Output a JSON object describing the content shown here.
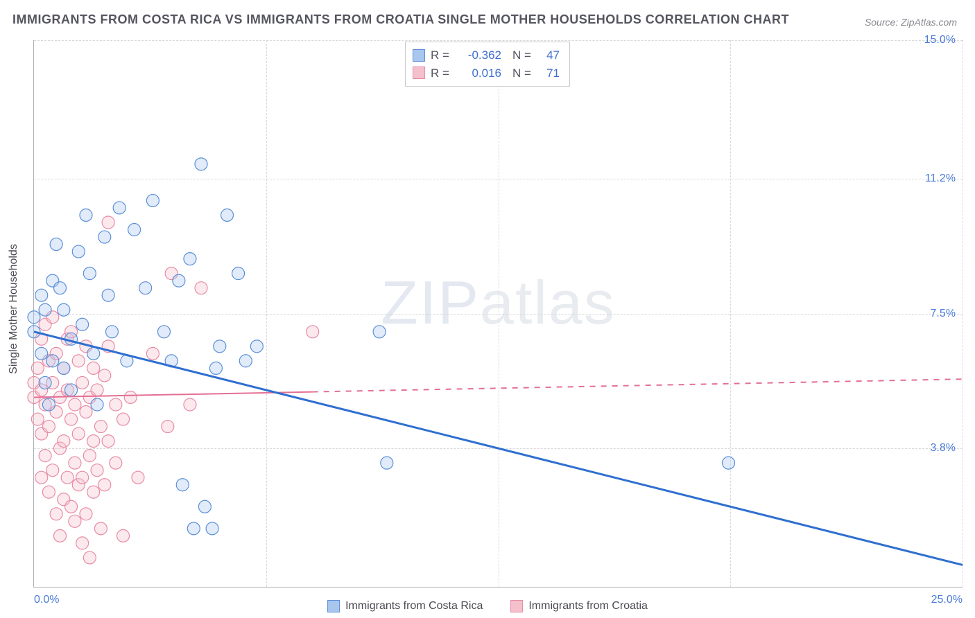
{
  "title": "IMMIGRANTS FROM COSTA RICA VS IMMIGRANTS FROM CROATIA SINGLE MOTHER HOUSEHOLDS CORRELATION CHART",
  "source": "Source: ZipAtlas.com",
  "watermark_main": "ZIP",
  "watermark_sub": "atlas",
  "ylabel": "Single Mother Households",
  "chart": {
    "type": "scatter-with-trend",
    "x_range": [
      0.0,
      25.0
    ],
    "y_range": [
      0.0,
      15.0
    ],
    "x_ticks": [
      0.0,
      25.0
    ],
    "x_tick_labels": [
      "0.0%",
      "25.0%"
    ],
    "x_grid_positions": [
      0.0,
      6.25,
      12.5,
      18.75,
      25.0
    ],
    "y_ticks": [
      3.8,
      7.5,
      11.2,
      15.0
    ],
    "y_tick_labels": [
      "3.8%",
      "7.5%",
      "11.2%",
      "15.0%"
    ],
    "background_color": "#ffffff",
    "grid_color": "#d8d8dc",
    "axis_color": "#b0b0b8",
    "marker_radius": 9,
    "marker_fill_opacity": 0.35,
    "marker_stroke_width": 1.2,
    "series": [
      {
        "name": "Immigrants from Costa Rica",
        "color_fill": "#a9c6ee",
        "color_stroke": "#5b8fd8",
        "trend_color": "#2f6fd0",
        "trend_width": 3,
        "trend_dash_after_x": null,
        "R": -0.362,
        "N": 47,
        "trend_start": {
          "x": 0.0,
          "y": 7.0
        },
        "trend_end": {
          "x": 25.0,
          "y": 0.6
        },
        "points": [
          [
            0.0,
            7.0
          ],
          [
            0.0,
            7.4
          ],
          [
            0.2,
            8.0
          ],
          [
            0.2,
            6.4
          ],
          [
            0.3,
            5.6
          ],
          [
            0.3,
            7.6
          ],
          [
            0.4,
            5.0
          ],
          [
            0.5,
            8.4
          ],
          [
            0.5,
            6.2
          ],
          [
            0.6,
            9.4
          ],
          [
            0.7,
            8.2
          ],
          [
            0.8,
            7.6
          ],
          [
            0.8,
            6.0
          ],
          [
            1.0,
            6.8
          ],
          [
            1.0,
            5.4
          ],
          [
            1.2,
            9.2
          ],
          [
            1.3,
            7.2
          ],
          [
            1.4,
            10.2
          ],
          [
            1.5,
            8.6
          ],
          [
            1.6,
            6.4
          ],
          [
            1.7,
            5.0
          ],
          [
            1.9,
            9.6
          ],
          [
            2.0,
            8.0
          ],
          [
            2.1,
            7.0
          ],
          [
            2.3,
            10.4
          ],
          [
            2.5,
            6.2
          ],
          [
            2.7,
            9.8
          ],
          [
            3.0,
            8.2
          ],
          [
            3.2,
            10.6
          ],
          [
            3.5,
            7.0
          ],
          [
            3.7,
            6.2
          ],
          [
            3.9,
            8.4
          ],
          [
            4.0,
            2.8
          ],
          [
            4.2,
            9.0
          ],
          [
            4.5,
            11.6
          ],
          [
            4.6,
            2.2
          ],
          [
            4.9,
            6.0
          ],
          [
            5.0,
            6.6
          ],
          [
            5.2,
            10.2
          ],
          [
            5.5,
            8.6
          ],
          [
            5.7,
            6.2
          ],
          [
            6.0,
            6.6
          ],
          [
            9.3,
            7.0
          ],
          [
            9.5,
            3.4
          ],
          [
            4.3,
            1.6
          ],
          [
            4.8,
            1.6
          ],
          [
            18.7,
            3.4
          ]
        ]
      },
      {
        "name": "Immigrants from Croatia",
        "color_fill": "#f4c0cc",
        "color_stroke": "#e88ba4",
        "trend_color": "#e46f94",
        "trend_width": 2,
        "trend_dash_after_x": 7.5,
        "R": 0.016,
        "N": 71,
        "trend_start": {
          "x": 0.0,
          "y": 5.2
        },
        "trend_end": {
          "x": 25.0,
          "y": 5.7
        },
        "points": [
          [
            0.0,
            5.2
          ],
          [
            0.0,
            5.6
          ],
          [
            0.1,
            4.6
          ],
          [
            0.1,
            6.0
          ],
          [
            0.2,
            3.0
          ],
          [
            0.2,
            4.2
          ],
          [
            0.2,
            5.4
          ],
          [
            0.2,
            6.8
          ],
          [
            0.3,
            7.2
          ],
          [
            0.3,
            3.6
          ],
          [
            0.3,
            5.0
          ],
          [
            0.4,
            4.4
          ],
          [
            0.4,
            2.6
          ],
          [
            0.4,
            6.2
          ],
          [
            0.5,
            5.6
          ],
          [
            0.5,
            3.2
          ],
          [
            0.5,
            7.4
          ],
          [
            0.6,
            4.8
          ],
          [
            0.6,
            2.0
          ],
          [
            0.6,
            6.4
          ],
          [
            0.7,
            5.2
          ],
          [
            0.7,
            3.8
          ],
          [
            0.7,
            1.4
          ],
          [
            0.8,
            4.0
          ],
          [
            0.8,
            6.0
          ],
          [
            0.8,
            2.4
          ],
          [
            0.9,
            5.4
          ],
          [
            0.9,
            3.0
          ],
          [
            0.9,
            6.8
          ],
          [
            1.0,
            4.6
          ],
          [
            1.0,
            2.2
          ],
          [
            1.0,
            7.0
          ],
          [
            1.1,
            5.0
          ],
          [
            1.1,
            3.4
          ],
          [
            1.1,
            1.8
          ],
          [
            1.2,
            6.2
          ],
          [
            1.2,
            4.2
          ],
          [
            1.2,
            2.8
          ],
          [
            1.3,
            5.6
          ],
          [
            1.3,
            3.0
          ],
          [
            1.3,
            1.2
          ],
          [
            1.4,
            4.8
          ],
          [
            1.4,
            6.6
          ],
          [
            1.4,
            2.0
          ],
          [
            1.5,
            5.2
          ],
          [
            1.5,
            3.6
          ],
          [
            1.5,
            0.8
          ],
          [
            1.6,
            4.0
          ],
          [
            1.6,
            6.0
          ],
          [
            1.6,
            2.6
          ],
          [
            1.7,
            5.4
          ],
          [
            1.7,
            3.2
          ],
          [
            1.8,
            4.4
          ],
          [
            1.8,
            1.6
          ],
          [
            1.9,
            5.8
          ],
          [
            1.9,
            2.8
          ],
          [
            2.0,
            4.0
          ],
          [
            2.0,
            6.6
          ],
          [
            2.0,
            10.0
          ],
          [
            2.2,
            5.0
          ],
          [
            2.2,
            3.4
          ],
          [
            2.4,
            4.6
          ],
          [
            2.4,
            1.4
          ],
          [
            2.6,
            5.2
          ],
          [
            2.8,
            3.0
          ],
          [
            3.2,
            6.4
          ],
          [
            3.6,
            4.4
          ],
          [
            3.7,
            8.6
          ],
          [
            4.2,
            5.0
          ],
          [
            4.5,
            8.2
          ],
          [
            7.5,
            7.0
          ]
        ]
      }
    ]
  },
  "legend_top_labels": {
    "R": "R =",
    "N": "N ="
  },
  "legend_top_values": {
    "series1": {
      "R": "-0.362",
      "N": "47"
    },
    "series2": {
      "R": "0.016",
      "N": "71"
    }
  },
  "colors": {
    "title": "#555560",
    "tick_label": "#4a7bd6",
    "axis_label": "#4a4a52"
  }
}
